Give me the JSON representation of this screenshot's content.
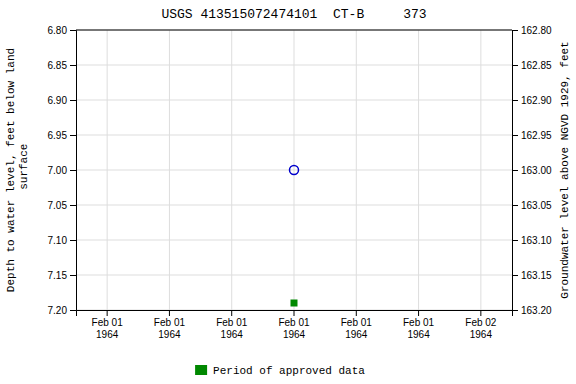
{
  "chart_data": {
    "type": "scatter",
    "title": "USGS 413515072474101  CT-B     373",
    "y_label": "Depth to water level, feet below land\n surface",
    "y2_label": "Groundwater level above NGVD 1929, feet",
    "categories": [
      "Feb 01\n1964",
      "Feb 01\n1964",
      "Feb 01\n1964",
      "Feb 01\n1964",
      "Feb 01\n1964",
      "Feb 01\n1964",
      "Feb 02\n1964"
    ],
    "series": [
      {
        "color": "#0000cc",
        "marker": "circle-open",
        "values": [
          null,
          null,
          null,
          7.0,
          null,
          null,
          null
        ]
      },
      {
        "name": "Period of approved data",
        "color": "#008800",
        "marker": "square",
        "values": [
          null,
          null,
          null,
          7.19,
          null,
          null,
          null
        ]
      }
    ],
    "ylim": [
      7.2,
      6.8
    ],
    "yticks": [
      {
        "value": 6.8,
        "label": "6.80"
      },
      {
        "value": 6.85,
        "label": "6.85"
      },
      {
        "value": 6.9,
        "label": "6.90"
      },
      {
        "value": 6.95,
        "label": "6.95"
      },
      {
        "value": 7.0,
        "label": "7.00"
      },
      {
        "value": 7.05,
        "label": "7.05"
      },
      {
        "value": 7.1,
        "label": "7.10"
      },
      {
        "value": 7.15,
        "label": "7.15"
      },
      {
        "value": 7.2,
        "label": "7.20"
      }
    ],
    "y2lim": [
      163.2,
      162.8
    ],
    "y2ticks": [
      {
        "value": 163.2,
        "label": "163.20"
      },
      {
        "value": 163.15,
        "label": "163.15"
      },
      {
        "value": 163.1,
        "label": "163.10"
      },
      {
        "value": 163.05,
        "label": "163.05"
      },
      {
        "value": 163.0,
        "label": "163.00"
      },
      {
        "value": 162.95,
        "label": "162.95"
      },
      {
        "value": 162.9,
        "label": "162.90"
      },
      {
        "value": 162.85,
        "label": "162.85"
      },
      {
        "value": 162.8,
        "label": "162.80"
      }
    ],
    "grid": true,
    "legend": "bottom"
  }
}
